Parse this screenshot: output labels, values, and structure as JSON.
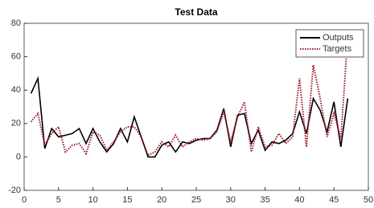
{
  "chart_data": {
    "type": "line",
    "title": "Test Data",
    "x": [
      1,
      2,
      3,
      4,
      5,
      6,
      7,
      8,
      9,
      10,
      11,
      12,
      13,
      14,
      15,
      16,
      17,
      18,
      19,
      20,
      21,
      22,
      23,
      24,
      25,
      26,
      27,
      28,
      29,
      30,
      31,
      32,
      33,
      34,
      35,
      36,
      37,
      38,
      39,
      40,
      41,
      42,
      43,
      44,
      45,
      46,
      47
    ],
    "series": [
      {
        "name": "Outputs",
        "color": "#000000",
        "dash": "solid",
        "values": [
          38,
          47,
          5,
          17,
          12,
          13,
          14,
          17,
          8,
          17,
          9,
          3,
          8,
          17,
          9,
          24,
          12,
          0,
          0,
          7,
          9,
          3,
          9,
          8,
          10,
          11,
          11,
          16,
          29,
          6,
          25,
          26,
          8,
          16,
          4,
          9,
          8,
          10,
          14,
          27,
          14,
          35,
          28,
          15,
          33,
          6,
          35
        ]
      },
      {
        "name": "Targets",
        "color": "#a0182a",
        "dash": "dotted",
        "values": [
          21,
          26,
          7,
          14,
          18,
          3,
          7,
          8,
          2,
          15,
          13,
          4,
          9,
          15,
          18,
          18,
          12,
          1,
          3,
          9,
          6,
          13,
          6,
          9,
          11,
          10,
          11,
          15,
          27,
          9,
          24,
          33,
          3,
          18,
          6,
          7,
          14,
          8,
          12,
          47,
          6,
          55,
          35,
          12,
          26,
          11,
          72
        ]
      }
    ],
    "xlim": [
      0,
      50
    ],
    "xticks": [
      0,
      5,
      10,
      15,
      20,
      25,
      30,
      35,
      40,
      45,
      50
    ],
    "ylim": [
      -20,
      80
    ],
    "yticks": [
      -20,
      0,
      20,
      40,
      60,
      80
    ],
    "legend": "upper right"
  }
}
